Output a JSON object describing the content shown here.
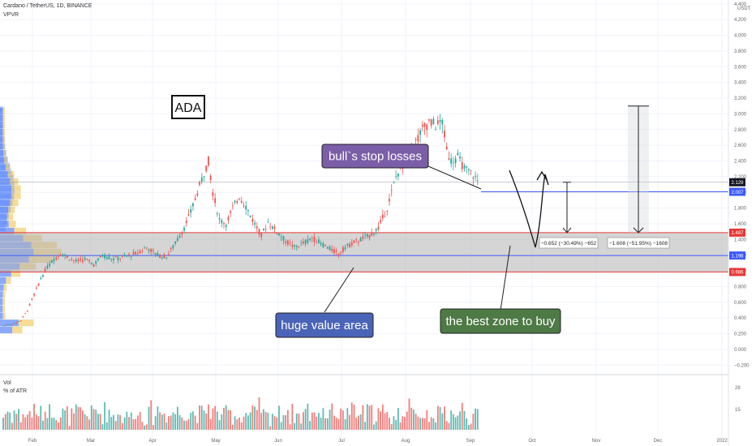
{
  "header": {
    "symbol": "Cardano / TetherUS, 1D, BINANCE",
    "indicator": "VPVR",
    "currency": "USDT"
  },
  "volume_pane": {
    "title": "Vol",
    "subtitle": "% of ATR",
    "ticks": [
      "28",
      "15"
    ]
  },
  "annotations": {
    "ticker_box": "ADA",
    "stop_losses": "bull`s stop losses",
    "value_area": "huge value area",
    "buy_zone": "the best zone to buy",
    "measure_short": "−0.652 (−30.49%) −652",
    "measure_long": "−1.608 (−51.95%) −1608"
  },
  "price_tags": [
    {
      "label": "2.129",
      "value": 2.129,
      "color": "#131722"
    },
    {
      "label": "2.007",
      "value": 2.007,
      "color": "#3d5afe"
    },
    {
      "label": "1.487",
      "value": 1.487,
      "color": "#e53935"
    },
    {
      "label": "1.196",
      "value": 1.196,
      "color": "#3d5afe"
    },
    {
      "label": "0.986",
      "value": 0.986,
      "color": "#e53935"
    }
  ],
  "colors": {
    "up": "#26a69a",
    "down": "#ef5350",
    "zone_fill": "#b2b2b2",
    "zone_border": "#e53935",
    "level_line": "#3d5afe",
    "label_purple": "#7b5ea7",
    "label_blue": "#4a64b8",
    "label_green": "#4e7a45",
    "vp_blue": "#2962ff",
    "vp_yellow": "#f0c040"
  },
  "chart_data": {
    "type": "candlestick",
    "title": "Cardano / TetherUS, 1D, BINANCE",
    "ylabel": "USDT",
    "y_ticks": [
      "4.400",
      "4.200",
      "4.000",
      "3.800",
      "3.600",
      "3.400",
      "3.200",
      "3.000",
      "2.800",
      "2.600",
      "2.400",
      "2.200",
      "2.000",
      "1.800",
      "1.600",
      "1.400",
      "1.200",
      "1.000",
      "0.800",
      "0.600",
      "0.400",
      "0.200",
      "0.000",
      "−0.200"
    ],
    "x_ticks": [
      "Feb",
      "Mar",
      "Apr",
      "May",
      "Jun",
      "Jul",
      "Aug",
      "Sep",
      "Oct",
      "Nov",
      "Dec",
      "2022"
    ],
    "ylim": [
      -0.28,
      4.45
    ],
    "price_path": [
      [
        0,
        0.3
      ],
      [
        4,
        0.32
      ],
      [
        8,
        0.37
      ],
      [
        11,
        0.5
      ],
      [
        14,
        0.7
      ],
      [
        17,
        0.9
      ],
      [
        20,
        1.05
      ],
      [
        23,
        1.15
      ],
      [
        26,
        1.22
      ],
      [
        29,
        1.18
      ],
      [
        33,
        1.12
      ],
      [
        37,
        1.15
      ],
      [
        41,
        1.08
      ],
      [
        45,
        1.2
      ],
      [
        50,
        1.15
      ],
      [
        55,
        1.18
      ],
      [
        60,
        1.22
      ],
      [
        65,
        1.3
      ],
      [
        70,
        1.2
      ],
      [
        74,
        1.18
      ],
      [
        78,
        1.35
      ],
      [
        82,
        1.55
      ],
      [
        85,
        1.75
      ],
      [
        88,
        2.0
      ],
      [
        91,
        2.25
      ],
      [
        93,
        2.4
      ],
      [
        95,
        2.0
      ],
      [
        98,
        1.65
      ],
      [
        101,
        1.6
      ],
      [
        104,
        1.8
      ],
      [
        107,
        1.95
      ],
      [
        110,
        1.82
      ],
      [
        113,
        1.65
      ],
      [
        117,
        1.45
      ],
      [
        120,
        1.62
      ],
      [
        124,
        1.5
      ],
      [
        128,
        1.38
      ],
      [
        132,
        1.3
      ],
      [
        136,
        1.35
      ],
      [
        140,
        1.42
      ],
      [
        144,
        1.35
      ],
      [
        148,
        1.28
      ],
      [
        152,
        1.22
      ],
      [
        155,
        1.3
      ],
      [
        158,
        1.35
      ],
      [
        162,
        1.4
      ],
      [
        166,
        1.45
      ],
      [
        170,
        1.55
      ],
      [
        174,
        1.8
      ],
      [
        178,
        2.2
      ],
      [
        182,
        2.4
      ],
      [
        186,
        2.6
      ],
      [
        190,
        2.8
      ],
      [
        193,
        2.9
      ],
      [
        196,
        2.85
      ],
      [
        199,
        2.9
      ],
      [
        201,
        2.55
      ],
      [
        203,
        2.4
      ],
      [
        206,
        2.45
      ],
      [
        209,
        2.3
      ],
      [
        212,
        2.25
      ],
      [
        215,
        2.15
      ]
    ],
    "volume_profile_bands": 32,
    "zones": [
      {
        "top": 1.487,
        "bottom": 0.986
      }
    ],
    "levels": [
      2.129,
      2.007,
      1.196
    ]
  }
}
